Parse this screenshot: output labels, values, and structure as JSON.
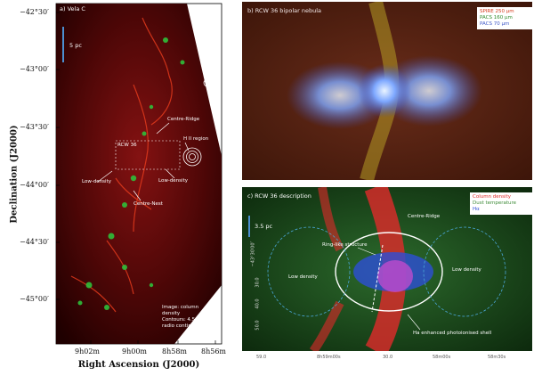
{
  "panel_a": {
    "tag": "a) Vela C",
    "ylabel": "Declination (J2000)",
    "xlabel": "Right Ascension (J2000)",
    "y_ticks": [
      "−42°30′",
      "−43°00′",
      "−43°30′",
      "−44°00′",
      "−44°30′",
      "−45°00′"
    ],
    "x_ticks": [
      "9h02m",
      "9h00m",
      "8h58m",
      "8h56m"
    ],
    "scale": "5 pc",
    "labels": {
      "centre_ridge": "Centre-Ridge",
      "rcw36": "RCW 36",
      "hii": "H II region",
      "low_density_left": "Low-density",
      "low_density_right": "Low-density",
      "centre_nest": "Centre-Nest"
    },
    "legend": [
      "Image: column",
      "density",
      "Contours: 4.5 GHz",
      "radio continuum"
    ]
  },
  "panel_b": {
    "tag": "b) RCW 36 bipolar nebula",
    "legend": [
      {
        "text": "SPIRE 250 μm",
        "color": "#d63a1c"
      },
      {
        "text": "PACS 160 μm",
        "color": "#2f8a2a"
      },
      {
        "text": "PACS 70 μm",
        "color": "#3f58c8"
      }
    ]
  },
  "panel_c": {
    "tag": "c) RCW 36 description",
    "scale": "3.5 pc",
    "legend": [
      {
        "text": "Column density",
        "color": "#e02a2a"
      },
      {
        "text": "Dust temperature",
        "color": "#3d8b37"
      },
      {
        "text": "Hα",
        "color": "#2d4fd6"
      }
    ],
    "labels": {
      "centre_ridge": "Centre-Ridge",
      "ring": "Ring-like structure",
      "low_density_left": "Low density",
      "low_density_right": "Low density",
      "shell": "Ha enhanced photoionised shell"
    },
    "y_ticks": [
      "−43°30′00″",
      "30.0",
      "40.0",
      "50.0"
    ],
    "x_ticks": [
      "59.0",
      "8h59m00s",
      "30.0",
      "58m00s",
      "58m30s"
    ]
  }
}
